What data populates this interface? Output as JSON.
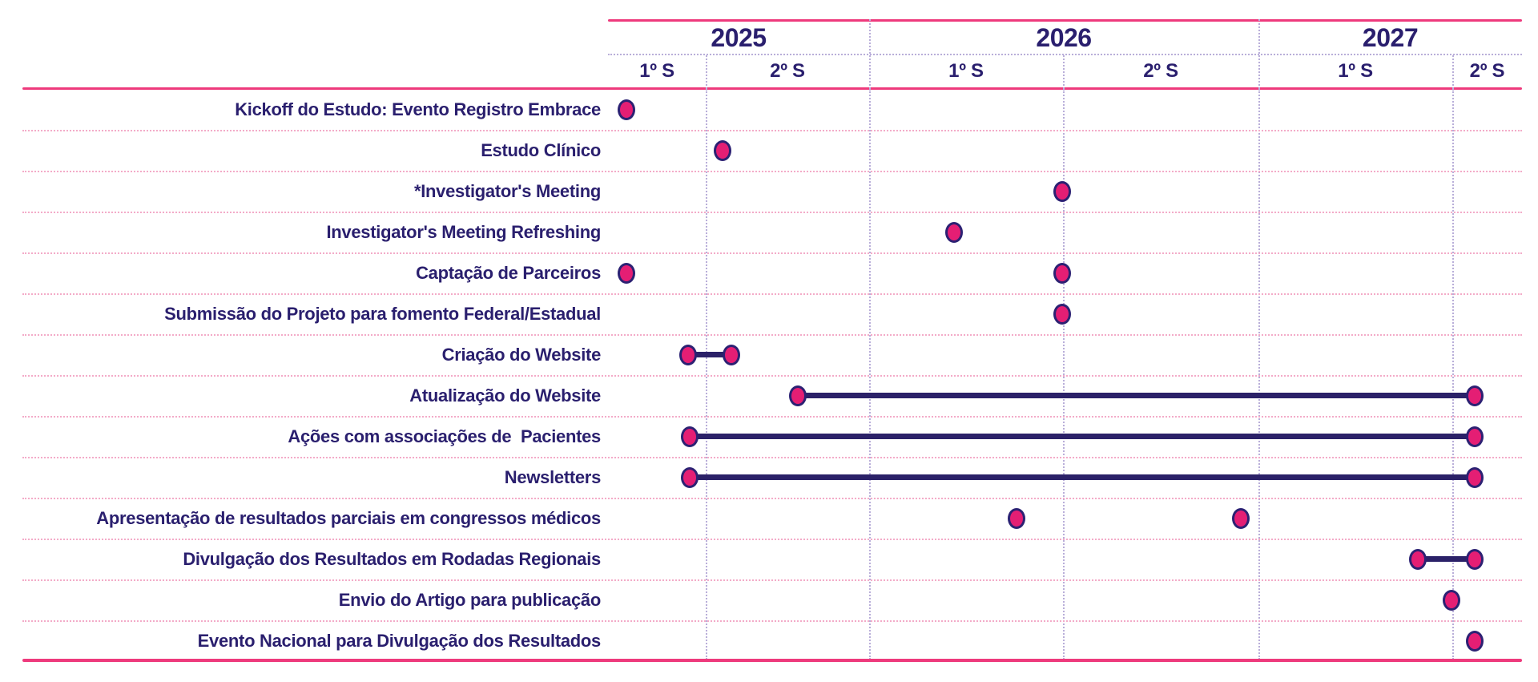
{
  "colors": {
    "background": "#ffffff",
    "text_navy": "#2a1f6e",
    "accent_pink": "#ee3a7c",
    "dot_fill": "#e41e74",
    "dot_ring": "#2c2173",
    "bar_navy": "#2b2168",
    "row_separator_pink": "#f3abc8",
    "grid_lavender": "#b9aed9"
  },
  "chart_data": {
    "type": "gantt-timeline",
    "axis": "semesters 2025-2027, unequal column widths as drawn",
    "years": [
      {
        "label": "2025",
        "semesters": [
          {
            "label": "1º S",
            "width_pct": 10.69
          },
          {
            "label": "2º S",
            "width_pct": 17.88
          }
        ]
      },
      {
        "label": "2026",
        "semesters": [
          {
            "label": "1º S",
            "width_pct": 21.21
          },
          {
            "label": "2º S",
            "width_pct": 21.39
          }
        ]
      },
      {
        "label": "2027",
        "semesters": [
          {
            "label": "1º S",
            "width_pct": 21.2
          },
          {
            "label": "2º S",
            "width_pct": 7.63
          }
        ]
      }
    ],
    "tasks": [
      {
        "label": "Kickoff do Estudo: Evento Registro Embrace",
        "points": [
          {
            "x_pct": 2.0,
            "semester": "2025-S1"
          }
        ],
        "segments": []
      },
      {
        "label": "Estudo Clínico",
        "points": [
          {
            "x_pct": 12.5,
            "semester": "2025-S2"
          }
        ],
        "segments": []
      },
      {
        "label": "*Investigator's Meeting",
        "points": [
          {
            "x_pct": 49.7,
            "semester": "2026-S1/S2"
          }
        ],
        "segments": []
      },
      {
        "label": "Investigator's Meeting Refreshing",
        "points": [
          {
            "x_pct": 37.9,
            "semester": "2026-S1"
          }
        ],
        "segments": []
      },
      {
        "label": "Captação de Parceiros",
        "points": [
          {
            "x_pct": 2.0,
            "semester": "2025-S1"
          },
          {
            "x_pct": 49.7,
            "semester": "2026-S1/S2"
          }
        ],
        "segments": []
      },
      {
        "label": "Submissão do Projeto para fomento Federal/Estadual",
        "points": [
          {
            "x_pct": 49.7,
            "semester": "2026-S1/S2"
          }
        ],
        "segments": []
      },
      {
        "label": "Criação do Website",
        "points": [
          {
            "x_pct": 8.8,
            "semester": "2025-S1"
          },
          {
            "x_pct": 13.5,
            "semester": "2025-S2"
          }
        ],
        "segments": [
          {
            "from_pct": 8.8,
            "to_pct": 13.5
          }
        ]
      },
      {
        "label": "Atualização do Website",
        "points": [
          {
            "x_pct": 20.8,
            "semester": "2025-S2"
          },
          {
            "x_pct": 94.8,
            "semester": "2027-S2"
          }
        ],
        "segments": [
          {
            "from_pct": 20.8,
            "to_pct": 94.8
          }
        ]
      },
      {
        "label": "Ações com associações de  Pacientes",
        "points": [
          {
            "x_pct": 8.9,
            "semester": "2025-S1"
          },
          {
            "x_pct": 94.8,
            "semester": "2027-S2"
          }
        ],
        "segments": [
          {
            "from_pct": 8.9,
            "to_pct": 94.8
          }
        ]
      },
      {
        "label": "Newsletters",
        "points": [
          {
            "x_pct": 8.9,
            "semester": "2025-S1"
          },
          {
            "x_pct": 94.8,
            "semester": "2027-S2"
          }
        ],
        "segments": [
          {
            "from_pct": 8.9,
            "to_pct": 94.8
          }
        ]
      },
      {
        "label": "Apresentação de resultados parciais em congressos médicos",
        "points": [
          {
            "x_pct": 44.7,
            "semester": "2026-S1"
          },
          {
            "x_pct": 69.2,
            "semester": "2026-S2"
          }
        ],
        "segments": []
      },
      {
        "label": "Divulgação dos Resultados em Rodadas Regionais",
        "points": [
          {
            "x_pct": 88.6,
            "semester": "2027-S1"
          },
          {
            "x_pct": 94.8,
            "semester": "2027-S2"
          }
        ],
        "segments": [
          {
            "from_pct": 88.6,
            "to_pct": 94.8
          }
        ]
      },
      {
        "label": "Envio do Artigo para publicação",
        "points": [
          {
            "x_pct": 92.3,
            "semester": "2027-S1/S2"
          }
        ],
        "segments": []
      },
      {
        "label": "Evento Nacional para Divulgação dos Resultados",
        "points": [
          {
            "x_pct": 94.8,
            "semester": "2027-S2"
          }
        ],
        "segments": []
      }
    ]
  }
}
